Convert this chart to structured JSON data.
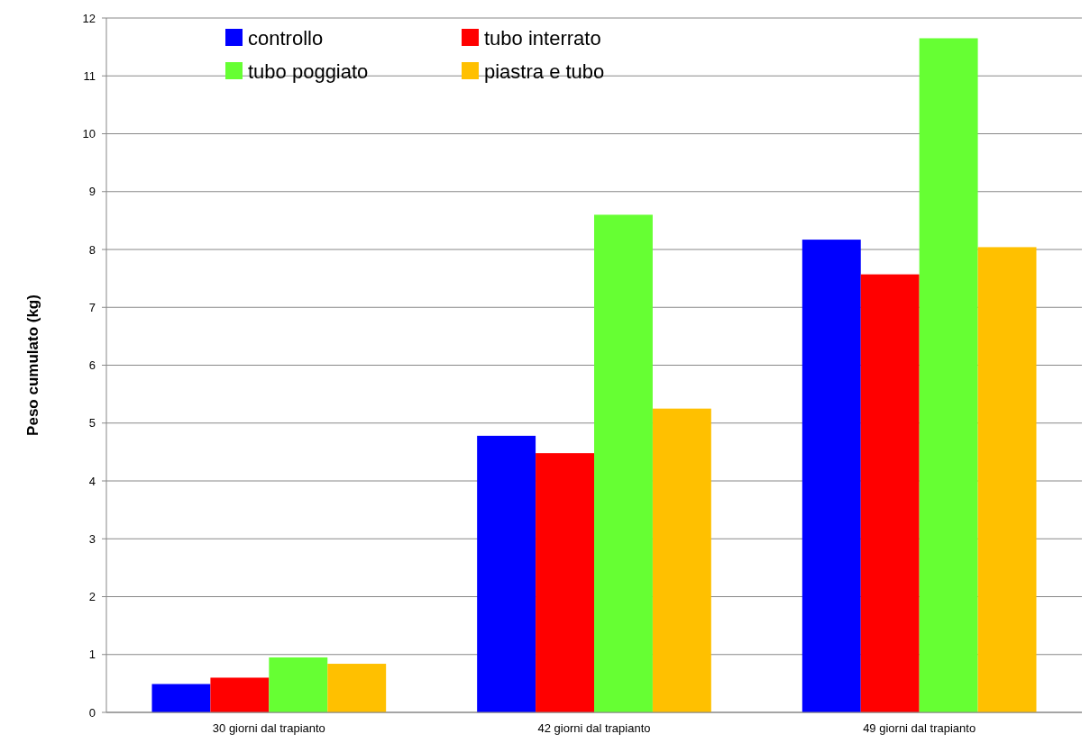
{
  "chart_data": {
    "type": "bar",
    "ylabel": "Peso cumulato (kg)",
    "categories": [
      "30  giorni dal trapianto",
      "42  giorni dal trapianto",
      "49  giorni dal trapianto"
    ],
    "series": [
      {
        "name": "controllo",
        "color": "#0000ff",
        "values": [
          0.49,
          4.78,
          8.17
        ]
      },
      {
        "name": "tubo interrato",
        "color": "#ff0000",
        "values": [
          0.6,
          4.48,
          7.57
        ]
      },
      {
        "name": "tubo poggiato",
        "color": "#66ff33",
        "values": [
          0.95,
          8.6,
          11.65
        ]
      },
      {
        "name": "piastra e tubo",
        "color": "#ffc000",
        "values": [
          0.84,
          5.25,
          8.04
        ]
      }
    ],
    "ylim": [
      0,
      12
    ],
    "yticks": [
      0,
      1,
      2,
      3,
      4,
      5,
      6,
      7,
      8,
      9,
      10,
      11,
      12
    ],
    "grid": "y",
    "legend": "top"
  }
}
